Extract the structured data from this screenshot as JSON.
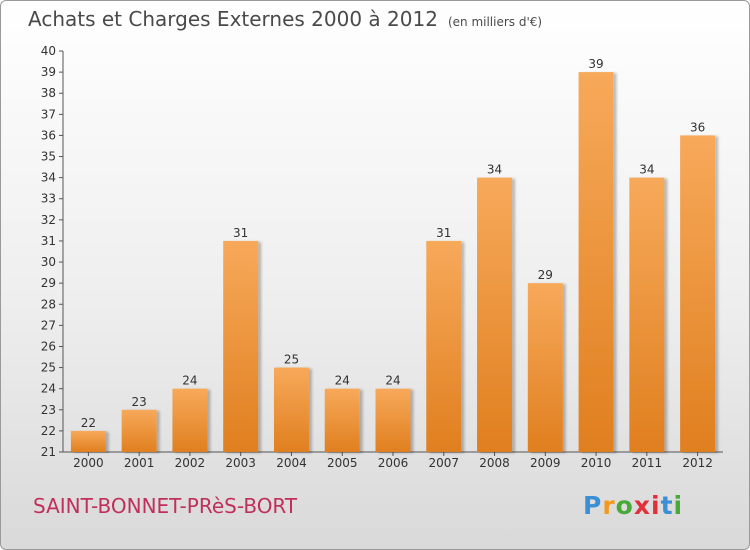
{
  "title": "Achats et Charges Externes 2000 à 2012",
  "unit": "(en milliers d'€)",
  "commune": "SAINT-BONNET-PRèS-BORT",
  "logo": {
    "letters": [
      "P",
      "r",
      "o",
      "x",
      "i",
      "t",
      "i"
    ],
    "colors": [
      "#3a8fd6",
      "#f29a1f",
      "#48a838",
      "#e2303a",
      "#e2303a",
      "#3a8fd6",
      "#48a838"
    ]
  },
  "colors": {
    "bar_light": "#f7a95a",
    "bar_dark": "#e07f1f",
    "title": "#4a4a4a",
    "commune": "#c0305a"
  },
  "chart_data": {
    "type": "bar",
    "categories": [
      "2000",
      "2001",
      "2002",
      "2003",
      "2004",
      "2005",
      "2006",
      "2007",
      "2008",
      "2009",
      "2010",
      "2011",
      "2012"
    ],
    "values": [
      22,
      23,
      24,
      31,
      25,
      24,
      24,
      31,
      34,
      29,
      39,
      34,
      36
    ],
    "ylim": [
      21,
      40
    ],
    "yticks": [
      21,
      22,
      23,
      24,
      25,
      26,
      27,
      28,
      29,
      30,
      31,
      32,
      33,
      34,
      35,
      36,
      37,
      38,
      39,
      40
    ],
    "grid": false,
    "legend": "none"
  }
}
